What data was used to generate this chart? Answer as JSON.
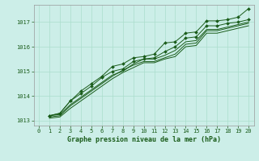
{
  "bg_color": "#cceee8",
  "line_color": "#1a5c1a",
  "grid_color": "#aaddcc",
  "title": "Graphe pression niveau de la mer (hPa)",
  "xlim": [
    -0.5,
    20.5
  ],
  "ylim": [
    1012.8,
    1017.7
  ],
  "xticks": [
    0,
    1,
    2,
    3,
    4,
    5,
    6,
    7,
    8,
    9,
    10,
    11,
    12,
    13,
    14,
    15,
    16,
    17,
    18,
    19,
    20
  ],
  "yticks": [
    1013,
    1014,
    1015,
    1016,
    1017
  ],
  "series": [
    [
      1013.2,
      1013.3,
      1013.8,
      1014.2,
      1014.5,
      1014.8,
      1015.2,
      1015.3,
      1015.55,
      1015.6,
      1015.7,
      1016.15,
      1016.2,
      1016.55,
      1016.6,
      1017.05,
      1017.05,
      1017.1,
      1017.2,
      1017.55
    ],
    [
      1013.2,
      1013.3,
      1013.8,
      1014.1,
      1014.4,
      1014.75,
      1015.0,
      1015.1,
      1015.4,
      1015.5,
      1015.55,
      1015.8,
      1016.0,
      1016.35,
      1016.4,
      1016.85,
      1016.85,
      1016.95,
      1017.0,
      1017.1
    ],
    [
      1013.2,
      1013.25,
      1013.65,
      1013.95,
      1014.25,
      1014.55,
      1014.85,
      1015.0,
      1015.3,
      1015.5,
      1015.5,
      1015.65,
      1015.85,
      1016.2,
      1016.25,
      1016.7,
      1016.7,
      1016.8,
      1016.9,
      1017.0
    ],
    [
      1013.15,
      1013.2,
      1013.6,
      1013.9,
      1014.2,
      1014.5,
      1014.8,
      1015.05,
      1015.25,
      1015.4,
      1015.4,
      1015.55,
      1015.7,
      1016.1,
      1016.15,
      1016.65,
      1016.65,
      1016.75,
      1016.85,
      1016.95
    ],
    [
      1013.1,
      1013.15,
      1013.5,
      1013.8,
      1014.1,
      1014.4,
      1014.7,
      1014.95,
      1015.15,
      1015.35,
      1015.35,
      1015.5,
      1015.6,
      1016.0,
      1016.05,
      1016.55,
      1016.55,
      1016.65,
      1016.75,
      1016.85
    ]
  ],
  "marker_series": [
    0,
    1
  ],
  "marker": "D",
  "marker_size": 2,
  "title_fontsize": 6,
  "tick_fontsize": 5,
  "linewidth": 0.7
}
